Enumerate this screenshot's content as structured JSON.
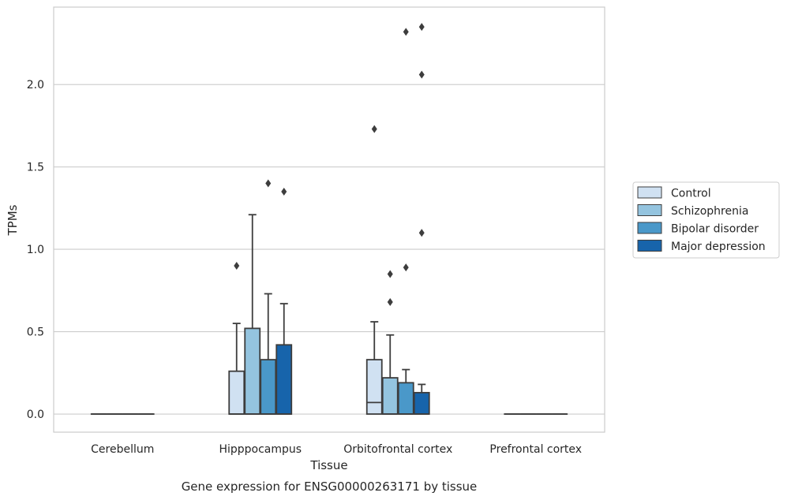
{
  "chart_data": {
    "type": "box",
    "title": "",
    "caption": "Gene expression for ENSG00000263171 by tissue",
    "xlabel": "Tissue",
    "ylabel": "TPMs",
    "ylim": [
      -0.11,
      2.47
    ],
    "yticks": [
      0.0,
      0.5,
      1.0,
      1.5,
      2.0
    ],
    "ytick_labels": [
      "0.0",
      "0.5",
      "1.0",
      "1.5",
      "2.0"
    ],
    "grid": true,
    "legend_position": "right",
    "categories": [
      "Cerebellum",
      "Hipppocampus",
      "Orbitofrontal cortex",
      "Prefrontal cortex"
    ],
    "series": [
      {
        "name": "Control",
        "color": "#d0e1f2",
        "boxes": [
          {
            "q1": 0,
            "median": 0,
            "q3": 0,
            "whisker_low": 0,
            "whisker_high": 0,
            "outliers": []
          },
          {
            "q1": 0,
            "median": 0,
            "q3": 0.26,
            "whisker_low": 0,
            "whisker_high": 0.55,
            "outliers": [
              0.9
            ]
          },
          {
            "q1": 0,
            "median": 0.07,
            "q3": 0.33,
            "whisker_low": 0,
            "whisker_high": 0.56,
            "outliers": [
              1.73
            ]
          },
          {
            "q1": 0,
            "median": 0,
            "q3": 0,
            "whisker_low": 0,
            "whisker_high": 0,
            "outliers": []
          }
        ]
      },
      {
        "name": "Schizophrenia",
        "color": "#94c4df",
        "boxes": [
          {
            "q1": 0,
            "median": 0,
            "q3": 0,
            "whisker_low": 0,
            "whisker_high": 0,
            "outliers": []
          },
          {
            "q1": 0,
            "median": 0,
            "q3": 0.52,
            "whisker_low": 0,
            "whisker_high": 1.21,
            "outliers": []
          },
          {
            "q1": 0,
            "median": 0,
            "q3": 0.22,
            "whisker_low": 0,
            "whisker_high": 0.48,
            "outliers": [
              0.68,
              0.85
            ]
          },
          {
            "q1": 0,
            "median": 0,
            "q3": 0,
            "whisker_low": 0,
            "whisker_high": 0,
            "outliers": []
          }
        ]
      },
      {
        "name": "Bipolar disorder",
        "color": "#4a98c9",
        "boxes": [
          {
            "q1": 0,
            "median": 0,
            "q3": 0,
            "whisker_low": 0,
            "whisker_high": 0,
            "outliers": []
          },
          {
            "q1": 0,
            "median": 0,
            "q3": 0.33,
            "whisker_low": 0,
            "whisker_high": 0.73,
            "outliers": [
              1.4
            ]
          },
          {
            "q1": 0,
            "median": 0,
            "q3": 0.19,
            "whisker_low": 0,
            "whisker_high": 0.27,
            "outliers": [
              0.89,
              2.32
            ]
          },
          {
            "q1": 0,
            "median": 0,
            "q3": 0,
            "whisker_low": 0,
            "whisker_high": 0,
            "outliers": []
          }
        ]
      },
      {
        "name": "Major depression",
        "color": "#1764ab",
        "boxes": [
          {
            "q1": 0,
            "median": 0,
            "q3": 0,
            "whisker_low": 0,
            "whisker_high": 0,
            "outliers": []
          },
          {
            "q1": 0,
            "median": 0,
            "q3": 0.42,
            "whisker_low": 0,
            "whisker_high": 0.67,
            "outliers": [
              1.35
            ]
          },
          {
            "q1": 0,
            "median": 0,
            "q3": 0.13,
            "whisker_low": 0,
            "whisker_high": 0.18,
            "outliers": [
              1.1,
              2.06,
              2.35
            ]
          },
          {
            "q1": 0,
            "median": 0,
            "q3": 0,
            "whisker_low": 0,
            "whisker_high": 0,
            "outliers": []
          }
        ]
      }
    ]
  }
}
